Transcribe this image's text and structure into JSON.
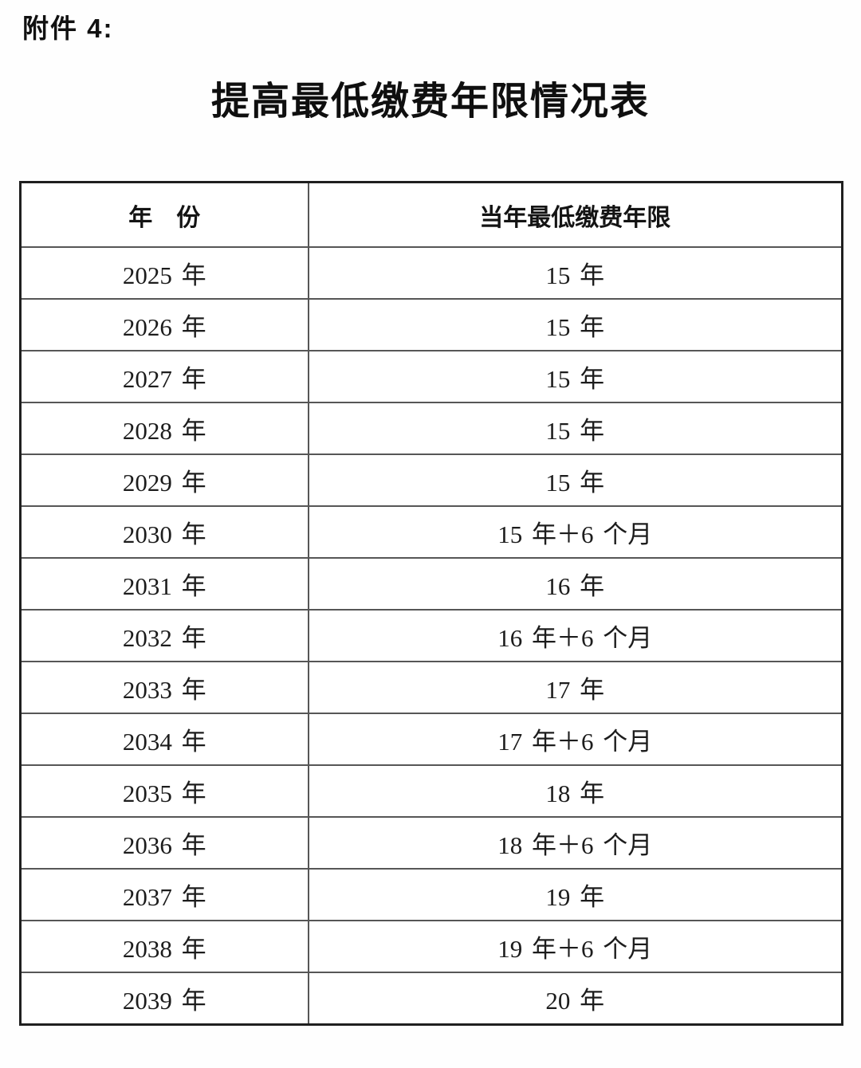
{
  "page": {
    "attachment_label": "附件 4:",
    "title": "提高最低缴费年限情况表",
    "background": "#fefefe",
    "ink_color": "#1a1a1a",
    "border_outer_color": "#1f1f1f",
    "border_inner_color": "#565656"
  },
  "table": {
    "headers": {
      "year": "年　份",
      "min_years": "当年最低缴费年限"
    },
    "rows": [
      {
        "year": "2025 年",
        "min_years": "15 年"
      },
      {
        "year": "2026 年",
        "min_years": "15 年"
      },
      {
        "year": "2027 年",
        "min_years": "15 年"
      },
      {
        "year": "2028 年",
        "min_years": "15 年"
      },
      {
        "year": "2029 年",
        "min_years": "15 年"
      },
      {
        "year": "2030 年",
        "min_years": "15 年＋6 个月"
      },
      {
        "year": "2031 年",
        "min_years": "16 年"
      },
      {
        "year": "2032 年",
        "min_years": "16 年＋6 个月"
      },
      {
        "year": "2033 年",
        "min_years": "17 年"
      },
      {
        "year": "2034 年",
        "min_years": "17 年＋6 个月"
      },
      {
        "year": "2035 年",
        "min_years": "18 年"
      },
      {
        "year": "2036 年",
        "min_years": "18 年＋6 个月"
      },
      {
        "year": "2037 年",
        "min_years": "19 年"
      },
      {
        "year": "2038 年",
        "min_years": "19 年＋6 个月"
      },
      {
        "year": "2039 年",
        "min_years": "20 年"
      }
    ]
  }
}
